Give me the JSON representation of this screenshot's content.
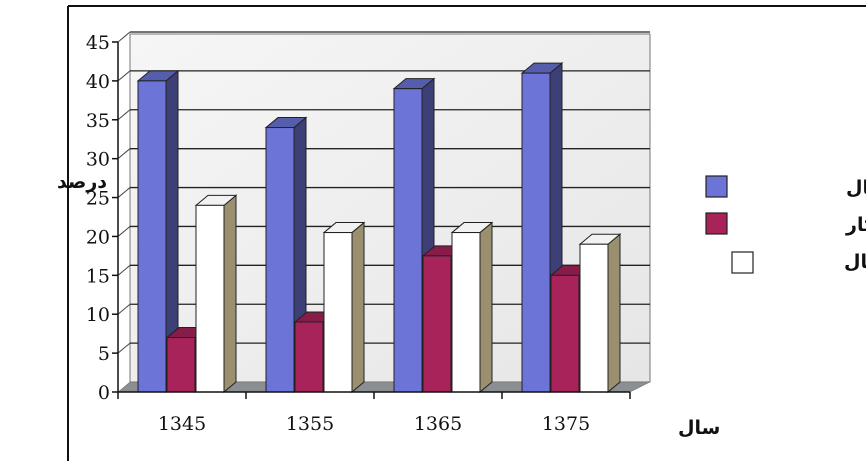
{
  "chart_data": {
    "type": "bar",
    "categories": [
      "1345",
      "1355",
      "1365",
      "1375"
    ],
    "series": [
      {
        "name": "فعال",
        "values": [
          40,
          34,
          39,
          41
        ],
        "color": "#6d74d8"
      },
      {
        "name": "بیکار",
        "values": [
          7,
          9,
          17.5,
          15
        ],
        "color": "#a8235a"
      },
      {
        "name": "ضریب اشتغال",
        "values": [
          24,
          20.5,
          20.5,
          19
        ],
        "color": "#ffffff"
      }
    ],
    "y_ticks": [
      "0",
      "5",
      "10",
      "15",
      "20",
      "25",
      "30",
      "35",
      "40",
      "45"
    ],
    "ylim": [
      0,
      45
    ],
    "xlabel": "سال",
    "ylabel": "درصد",
    "grid": true,
    "legend_position": "right"
  }
}
